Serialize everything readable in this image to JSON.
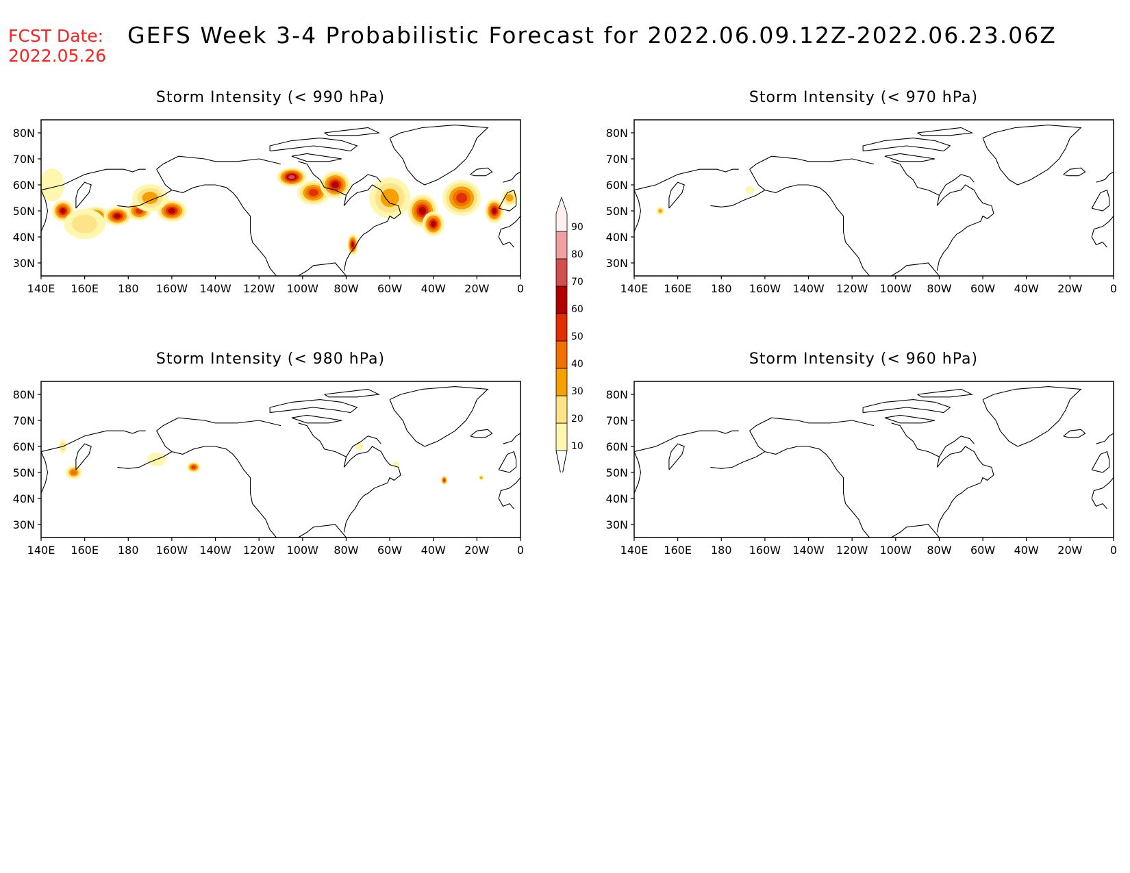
{
  "header": {
    "fcst_label": "FCST Date:",
    "fcst_date": "2022.05.26",
    "title": "GEFS Week 3-4 Probabilistic Forecast for 2022.06.09.12Z-2022.06.23.06Z"
  },
  "axes": {
    "lon_ticks": [
      "140E",
      "160E",
      "180",
      "160W",
      "140W",
      "120W",
      "100W",
      "80W",
      "60W",
      "40W",
      "20W",
      "0"
    ],
    "lat_ticks": [
      "80N",
      "70N",
      "60N",
      "50N",
      "40N",
      "30N"
    ]
  },
  "panels": [
    {
      "id": "p1",
      "title": "Storm Intensity (< 990 hPa)"
    },
    {
      "id": "p2",
      "title": "Storm Intensity (< 970 hPa)"
    },
    {
      "id": "p3",
      "title": "Storm Intensity (< 980 hPa)"
    },
    {
      "id": "p4",
      "title": "Storm Intensity (< 960 hPa)"
    }
  ],
  "colorbar": {
    "levels": [
      "10",
      "20",
      "30",
      "40",
      "50",
      "60",
      "70",
      "80",
      "90"
    ],
    "colors": [
      "#fff7b0",
      "#fde488",
      "#f5a000",
      "#f07000",
      "#e03000",
      "#b00000",
      "#d05050",
      "#f0a0a0",
      "#fff0f0"
    ]
  },
  "chart_data": {
    "type": "heatmap",
    "lon_range": [
      140,
      360
    ],
    "lat_range": [
      25,
      85
    ],
    "panels": [
      {
        "title": "Storm Intensity (< 990 hPa)",
        "blobs": [
          {
            "lon": 150,
            "lat": 50,
            "level": 60
          },
          {
            "lon": 165,
            "lat": 48,
            "level": 50
          },
          {
            "lon": 175,
            "lat": 48,
            "level": 60
          },
          {
            "lon": 185,
            "lat": 50,
            "level": 50
          },
          {
            "lon": 200,
            "lat": 50,
            "level": 60
          },
          {
            "lon": 190,
            "lat": 55,
            "level": 30
          },
          {
            "lon": 160,
            "lat": 45,
            "level": 20
          },
          {
            "lon": 145,
            "lat": 60,
            "level": 10
          },
          {
            "lon": 255,
            "lat": 63,
            "level": 70
          },
          {
            "lon": 265,
            "lat": 57,
            "level": 50
          },
          {
            "lon": 275,
            "lat": 60,
            "level": 60
          },
          {
            "lon": 283,
            "lat": 37,
            "level": 60
          },
          {
            "lon": 300,
            "lat": 55,
            "level": 30
          },
          {
            "lon": 315,
            "lat": 50,
            "level": 60
          },
          {
            "lon": 320,
            "lat": 45,
            "level": 60
          },
          {
            "lon": 333,
            "lat": 55,
            "level": 50
          },
          {
            "lon": 348,
            "lat": 50,
            "level": 60
          },
          {
            "lon": 355,
            "lat": 55,
            "level": 30
          }
        ]
      },
      {
        "title": "Storm Intensity (< 970 hPa)",
        "blobs": [
          {
            "lon": 152,
            "lat": 50,
            "level": 30
          },
          {
            "lon": 193,
            "lat": 58,
            "level": 10
          }
        ]
      },
      {
        "title": "Storm Intensity (< 980 hPa)",
        "blobs": [
          {
            "lon": 150,
            "lat": 60,
            "level": 20
          },
          {
            "lon": 155,
            "lat": 50,
            "level": 40
          },
          {
            "lon": 193,
            "lat": 55,
            "level": 10
          },
          {
            "lon": 210,
            "lat": 52,
            "level": 50
          },
          {
            "lon": 286,
            "lat": 60,
            "level": 10
          },
          {
            "lon": 303,
            "lat": 53,
            "level": 10
          },
          {
            "lon": 325,
            "lat": 47,
            "level": 50
          },
          {
            "lon": 342,
            "lat": 48,
            "level": 30
          }
        ]
      },
      {
        "title": "Storm Intensity (< 960 hPa)",
        "blobs": []
      }
    ]
  }
}
